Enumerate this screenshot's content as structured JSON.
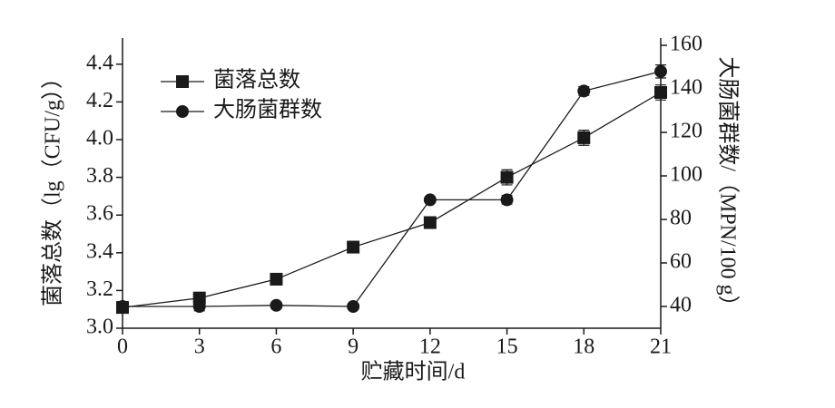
{
  "chart_data": {
    "type": "line",
    "x_label": "贮藏时间/d",
    "y_label": "菌落总数（lg（CFU/g））",
    "y2_label": "大肠菌群数/（MPN/100 g）",
    "x": [
      0,
      3,
      6,
      9,
      12,
      15,
      18,
      21
    ],
    "xlim": [
      0,
      21
    ],
    "xticks": [
      0,
      3,
      6,
      9,
      12,
      15,
      18,
      21
    ],
    "ylim": [
      3.0,
      4.5
    ],
    "yticks": [
      {
        "value": 3.0,
        "label": "3.0"
      },
      3.2,
      3.4,
      3.6,
      3.8,
      {
        "value": 4.0,
        "label": "4.0"
      },
      4.2,
      4.4
    ],
    "y2lim": [
      30,
      160
    ],
    "y2ticks": [
      40,
      60,
      80,
      100,
      120,
      140,
      160
    ],
    "legend": "upper left",
    "series": [
      {
        "name": "菌落总数",
        "color": "#1a1a1a",
        "marker": "square",
        "axis": "y",
        "values": [
          3.11,
          3.16,
          3.26,
          3.43,
          3.56,
          3.8,
          4.01,
          4.25
        ],
        "errors": [
          0.03,
          0.03,
          0.03,
          0.03,
          0.03,
          0.04,
          0.04,
          0.04
        ]
      },
      {
        "name": "大肠菌群数",
        "color": "#1a1a1a",
        "marker": "circle",
        "axis": "y2",
        "values": [
          40,
          40,
          40.5,
          40,
          89,
          89,
          139,
          148
        ],
        "errors": [
          2,
          2,
          1.5,
          1,
          1,
          2,
          2,
          3
        ]
      }
    ]
  }
}
